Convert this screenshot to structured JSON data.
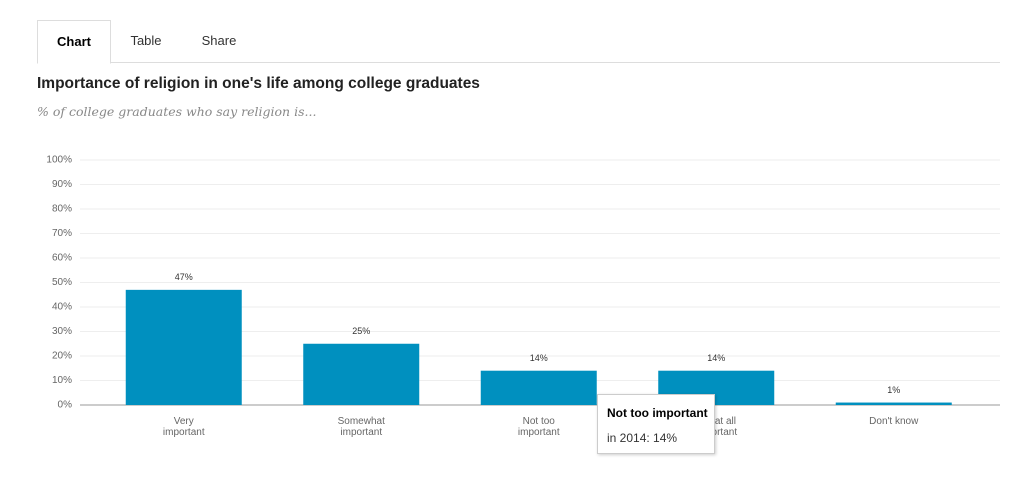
{
  "tabs": [
    "Chart",
    "Table",
    "Share"
  ],
  "chart_data": {
    "type": "bar",
    "title": "Importance of religion in one's life among college graduates",
    "subtitle": "% of college graduates who say religion is...",
    "categories": [
      "Very\nimportant",
      "Somewhat\nimportant",
      "Not too\nimportant",
      "Not at all\nimportant",
      "Don't know"
    ],
    "values": [
      47,
      25,
      14,
      14,
      1
    ],
    "value_labels": [
      "47%",
      "25%",
      "14%",
      "14%",
      "1%"
    ],
    "color": "#0090bf",
    "ylim": [
      0,
      100
    ],
    "yticks": [
      {
        "value": 0,
        "label": "0%"
      },
      {
        "value": 10,
        "label": "10%"
      },
      {
        "value": 20,
        "label": "20%"
      },
      {
        "value": 30,
        "label": "30%"
      },
      {
        "value": 40,
        "label": "40%"
      },
      {
        "value": 50,
        "label": "50%"
      },
      {
        "value": 60,
        "label": "60%"
      },
      {
        "value": 70,
        "label": "70%"
      },
      {
        "value": 80,
        "label": "80%"
      },
      {
        "value": 90,
        "label": "90%"
      },
      {
        "value": 100,
        "label": "100%"
      }
    ],
    "grid": true,
    "tooltip": {
      "title": "Not too important",
      "text": "in 2014: 14%"
    }
  }
}
